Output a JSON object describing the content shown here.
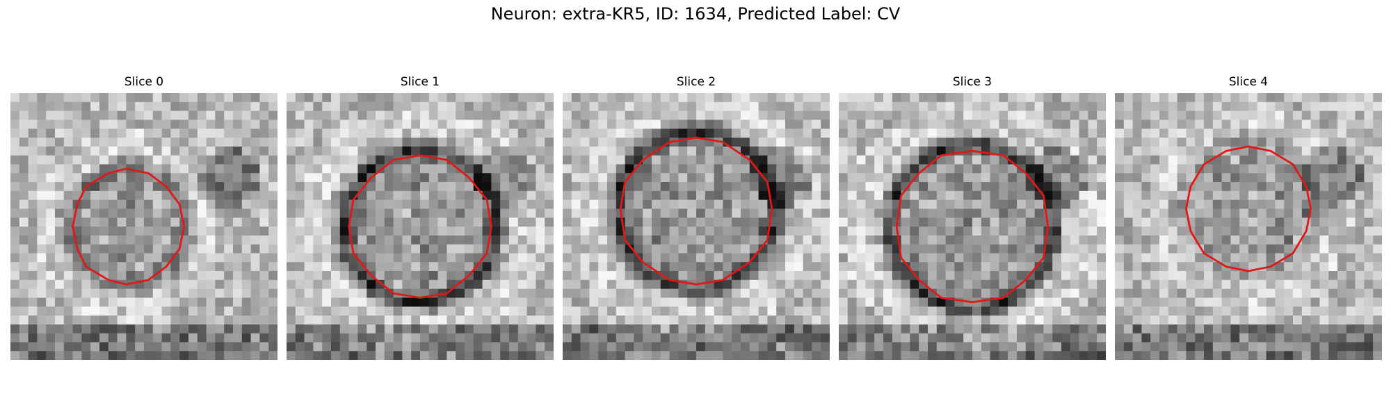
{
  "figure": {
    "suptitle": "Neuron: extra-KR5, ID: 1634, Predicted Label: CV",
    "overlay_color": "#e01818",
    "panels": [
      {
        "title": "Slice 0",
        "contour_radius": 0.21,
        "contour_center": [
          0.44,
          0.5
        ],
        "ring": "faint"
      },
      {
        "title": "Slice 1",
        "contour_radius": 0.27,
        "contour_center": [
          0.5,
          0.5
        ],
        "ring": "dark"
      },
      {
        "title": "Slice 2",
        "contour_radius": 0.28,
        "contour_center": [
          0.5,
          0.44
        ],
        "ring": "dark"
      },
      {
        "title": "Slice 3",
        "contour_radius": 0.29,
        "contour_center": [
          0.5,
          0.5
        ],
        "ring": "dark"
      },
      {
        "title": "Slice 4",
        "contour_radius": 0.23,
        "contour_center": [
          0.5,
          0.43
        ],
        "ring": "light"
      }
    ]
  }
}
